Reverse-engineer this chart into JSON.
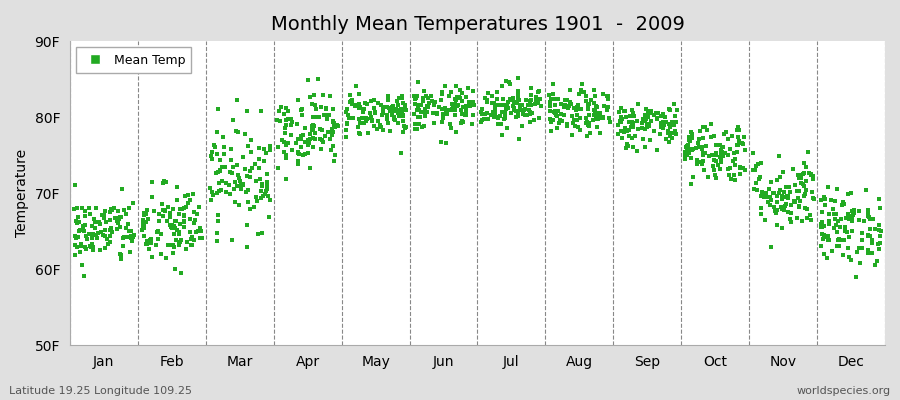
{
  "title": "Monthly Mean Temperatures 1901  -  2009",
  "ylabel": "Temperature",
  "footnote_left": "Latitude 19.25 Longitude 109.25",
  "footnote_right": "worldspecies.org",
  "legend_label": "Mean Temp",
  "dot_color": "#22aa22",
  "background_color": "#e0e0e0",
  "plot_bg_color": "#ffffff",
  "ylim": [
    50,
    90
  ],
  "yticks": [
    50,
    60,
    70,
    80,
    90
  ],
  "ytick_labels": [
    "50F",
    "60F",
    "70F",
    "80F",
    "90F"
  ],
  "months": [
    "Jan",
    "Feb",
    "Mar",
    "Apr",
    "May",
    "Jun",
    "Jul",
    "Aug",
    "Sep",
    "Oct",
    "Nov",
    "Dec"
  ],
  "month_means_F": [
    65.0,
    65.5,
    72.5,
    78.5,
    80.5,
    81.0,
    81.5,
    80.5,
    79.0,
    75.5,
    70.0,
    65.5
  ],
  "month_stds_F": [
    2.2,
    2.8,
    3.5,
    2.5,
    1.5,
    1.5,
    1.5,
    1.5,
    1.5,
    2.0,
    2.5,
    2.5
  ],
  "n_years": 109,
  "seed": 42
}
